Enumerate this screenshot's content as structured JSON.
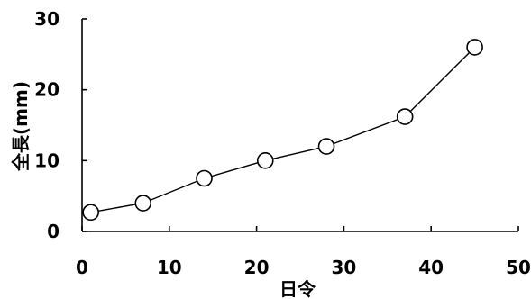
{
  "chart_data": {
    "type": "line",
    "title": "",
    "xlabel": "日令",
    "ylabel": "全長(mm)",
    "xlim": [
      0,
      50
    ],
    "ylim": [
      0,
      30
    ],
    "x_ticks": [
      "0",
      "10",
      "20",
      "30",
      "40",
      "50"
    ],
    "y_ticks": [
      "0",
      "10",
      "20",
      "30"
    ],
    "grid": false,
    "marker": "open-circle",
    "series": [
      {
        "x": [
          1,
          7,
          14,
          21,
          28,
          37,
          45
        ],
        "values": [
          2.7,
          4.0,
          7.5,
          10.0,
          12.0,
          16.2,
          26.0
        ]
      }
    ]
  }
}
